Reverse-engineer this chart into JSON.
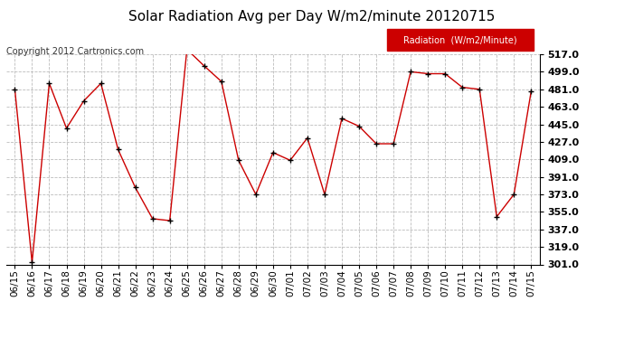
{
  "title": "Solar Radiation Avg per Day W/m2/minute 20120715",
  "copyright": "Copyright 2012 Cartronics.com",
  "legend_label": "Radiation  (W/m2/Minute)",
  "dates": [
    "06/15",
    "06/16",
    "06/17",
    "06/18",
    "06/19",
    "06/20",
    "06/21",
    "06/22",
    "06/23",
    "06/24",
    "06/25",
    "06/26",
    "06/27",
    "06/28",
    "06/29",
    "06/30",
    "07/01",
    "07/02",
    "07/03",
    "07/04",
    "07/05",
    "07/06",
    "07/07",
    "07/08",
    "07/09",
    "07/10",
    "07/11",
    "07/12",
    "07/13",
    "07/14",
    "07/15"
  ],
  "values": [
    481,
    303,
    487,
    441,
    469,
    487,
    419,
    380,
    348,
    346,
    522,
    505,
    489,
    408,
    373,
    416,
    408,
    431,
    373,
    451,
    443,
    425,
    425,
    499,
    497,
    497,
    483,
    481,
    350,
    373,
    479
  ],
  "line_color": "#cc0000",
  "marker_color": "#000000",
  "bg_color": "#ffffff",
  "plot_bg_color": "#ffffff",
  "grid_color": "#bbbbbb",
  "ylim_min": 301.0,
  "ylim_max": 517.0,
  "yticks": [
    301.0,
    319.0,
    337.0,
    355.0,
    373.0,
    391.0,
    409.0,
    427.0,
    445.0,
    463.0,
    481.0,
    499.0,
    517.0
  ],
  "legend_bg": "#cc0000",
  "legend_text_color": "#ffffff",
  "title_fontsize": 11,
  "copyright_fontsize": 7,
  "tick_fontsize": 7.5,
  "ytick_fontsize": 8
}
